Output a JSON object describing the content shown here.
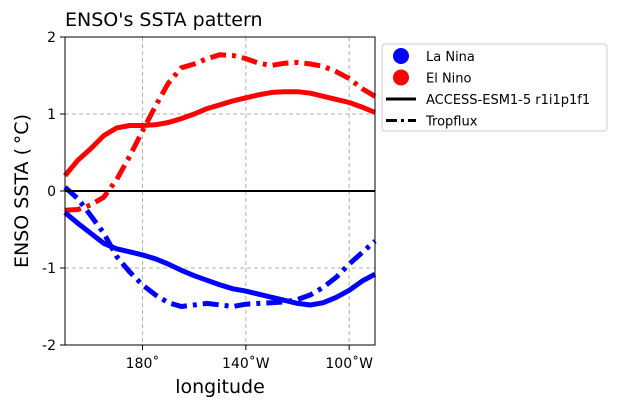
{
  "chart_data": {
    "type": "line",
    "title": "ENSO's SSTA pattern",
    "xlabel": "longitude",
    "ylabel": "ENSO SSTA ($^\\circ$C)",
    "ylabel_display": "ENSO SSTA ( °C)",
    "xlim": [
      150,
      270
    ],
    "ylim": [
      -2,
      2
    ],
    "xticks": [
      {
        "value": 180,
        "label": "180˚"
      },
      {
        "value": 220,
        "label": "140˚W"
      },
      {
        "value": 260,
        "label": "100˚W"
      }
    ],
    "yticks": [
      {
        "value": -2,
        "label": "-2"
      },
      {
        "value": -1,
        "label": "-1"
      },
      {
        "value": 0,
        "label": "0"
      },
      {
        "value": 1,
        "label": "1"
      },
      {
        "value": 2,
        "label": "2"
      }
    ],
    "grid": true,
    "legend_position": "outside-right-top",
    "legend": [
      {
        "label": "La Nina",
        "type": "marker",
        "color": "#0000ff"
      },
      {
        "label": "El Nino",
        "type": "marker",
        "color": "#ff0000"
      },
      {
        "label": "ACCESS-ESM1-5 r1i1p1f1",
        "type": "solid",
        "color": "#000000"
      },
      {
        "label": "Tropflux",
        "type": "dashdot",
        "color": "#000000"
      }
    ],
    "series": [
      {
        "name": "El Nino ACCESS-ESM1-5 r1i1p1f1",
        "color": "#ff0000",
        "style": "solid",
        "x": [
          150,
          155,
          160,
          165,
          170,
          175,
          180,
          185,
          190,
          195,
          200,
          205,
          210,
          215,
          220,
          225,
          230,
          235,
          240,
          245,
          250,
          255,
          260,
          265,
          270
        ],
        "y": [
          0.2,
          0.4,
          0.55,
          0.72,
          0.82,
          0.85,
          0.85,
          0.86,
          0.89,
          0.94,
          1.0,
          1.07,
          1.12,
          1.17,
          1.21,
          1.25,
          1.28,
          1.29,
          1.29,
          1.27,
          1.23,
          1.19,
          1.15,
          1.09,
          1.02
        ]
      },
      {
        "name": "El Nino Tropflux",
        "color": "#ff0000",
        "style": "dashdot",
        "x": [
          150,
          155,
          160,
          165,
          170,
          175,
          180,
          185,
          190,
          195,
          200,
          205,
          210,
          215,
          220,
          225,
          230,
          235,
          240,
          245,
          250,
          255,
          260,
          265,
          270
        ],
        "y": [
          -0.25,
          -0.24,
          -0.18,
          -0.08,
          0.15,
          0.45,
          0.78,
          1.1,
          1.4,
          1.6,
          1.65,
          1.72,
          1.77,
          1.76,
          1.72,
          1.66,
          1.63,
          1.66,
          1.67,
          1.65,
          1.62,
          1.55,
          1.46,
          1.33,
          1.23
        ]
      },
      {
        "name": "La Nina ACCESS-ESM1-5 r1i1p1f1",
        "color": "#0000ff",
        "style": "solid",
        "x": [
          150,
          155,
          160,
          165,
          170,
          175,
          180,
          185,
          190,
          195,
          200,
          205,
          210,
          215,
          220,
          225,
          230,
          235,
          240,
          245,
          250,
          255,
          260,
          265,
          270
        ],
        "y": [
          -0.28,
          -0.42,
          -0.55,
          -0.68,
          -0.75,
          -0.79,
          -0.83,
          -0.88,
          -0.95,
          -1.03,
          -1.1,
          -1.16,
          -1.22,
          -1.27,
          -1.3,
          -1.34,
          -1.38,
          -1.42,
          -1.46,
          -1.48,
          -1.45,
          -1.38,
          -1.29,
          -1.17,
          -1.08
        ]
      },
      {
        "name": "La Nina Tropflux",
        "color": "#0000ff",
        "style": "dashdot",
        "x": [
          150,
          155,
          160,
          165,
          170,
          175,
          180,
          185,
          190,
          195,
          200,
          205,
          210,
          215,
          220,
          225,
          230,
          235,
          240,
          245,
          250,
          255,
          260,
          265,
          270
        ],
        "y": [
          0.05,
          -0.1,
          -0.32,
          -0.55,
          -0.85,
          -1.05,
          -1.22,
          -1.35,
          -1.45,
          -1.5,
          -1.48,
          -1.46,
          -1.48,
          -1.5,
          -1.47,
          -1.46,
          -1.45,
          -1.44,
          -1.41,
          -1.35,
          -1.25,
          -1.12,
          -0.95,
          -0.8,
          -0.65
        ]
      },
      {
        "name": "zero line",
        "color": "#000000",
        "style": "solid",
        "x": [
          150,
          270
        ],
        "y": [
          0,
          0
        ]
      }
    ]
  }
}
